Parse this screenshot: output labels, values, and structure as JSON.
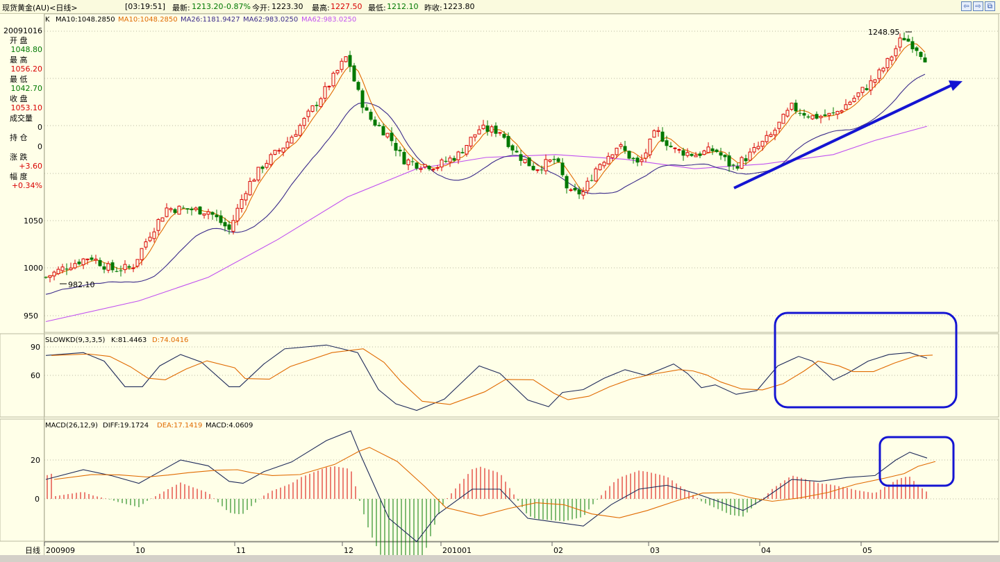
{
  "titlebar": {
    "name": "现货黄金(AU)<日线>",
    "time": "[03:19:51]",
    "latest_label": "最新:",
    "latest": "1213.20",
    "change_pct": "-0.87%",
    "open_label": "今开:",
    "open": "1223.30",
    "high_label": "最高:",
    "high": "1227.50",
    "low_label": "最低:",
    "low": "1212.10",
    "prev_label": "昨收:",
    "prev": "1223.80"
  },
  "info": {
    "date": "20091016",
    "open_label": "开  盘",
    "open": "1048.80",
    "high_label": "最  高",
    "high": "1056.20",
    "low_label": "最  低",
    "low": "1042.70",
    "close_label": "收  盘",
    "close": "1053.10",
    "volume_label": "成交量",
    "volume": "0",
    "position_label": "持  仓",
    "position": "0",
    "change_label": "涨  跌",
    "change": "+3.60",
    "amplitude_label": "幅  度",
    "amplitude": "+0.34%"
  },
  "price_panel": {
    "k_label": "K",
    "ma10_label": "MA10:1048.2850",
    "ma10b_label": "MA10:1048.2850",
    "ma26_label": "MA26:1181.9427",
    "ma62_label": "MA62:983.0250",
    "ma62b_label": "MA62:983.0250",
    "y_ticks": [
      "1050",
      "1000",
      "950"
    ],
    "max_label": "1248.95",
    "min_label": "982.10"
  },
  "kd_panel": {
    "title": "SLOWKD(9,3,3,5)",
    "k_label": "K:81.4463",
    "d_label": "D:74.0416",
    "y_ticks": [
      "90",
      "60"
    ]
  },
  "macd_panel": {
    "title": "MACD(26,12,9)",
    "diff_label": "DIFF:19.1724",
    "dea_label": "DEA:17.1419",
    "macd_label": "MACD:4.0609",
    "y_ticks": [
      "20",
      "0"
    ]
  },
  "x_axis": {
    "period_label": "日线",
    "labels": [
      "200909",
      "10",
      "11",
      "12",
      "201001",
      "02",
      "03",
      "04",
      "05"
    ]
  },
  "colors": {
    "up": "#d80000",
    "down": "#007800",
    "ma10": "#e06a00",
    "ma26": "#3a2a8a",
    "ma62": "#c050f0",
    "annot": "#1414d2",
    "grid": "#b9b9a0"
  }
}
